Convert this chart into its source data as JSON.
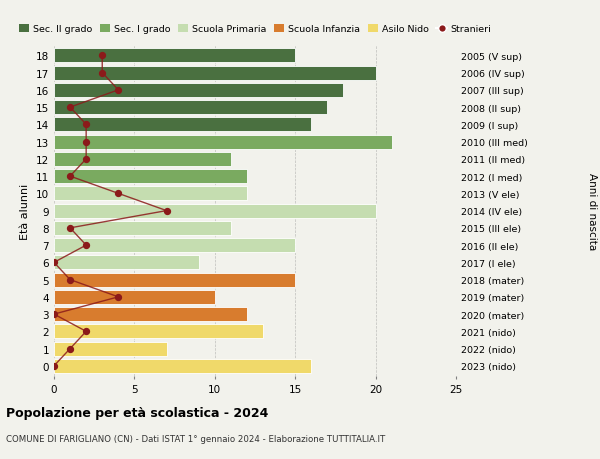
{
  "ages": [
    18,
    17,
    16,
    15,
    14,
    13,
    12,
    11,
    10,
    9,
    8,
    7,
    6,
    5,
    4,
    3,
    2,
    1,
    0
  ],
  "years": [
    "2005 (V sup)",
    "2006 (IV sup)",
    "2007 (III sup)",
    "2008 (II sup)",
    "2009 (I sup)",
    "2010 (III med)",
    "2011 (II med)",
    "2012 (I med)",
    "2013 (V ele)",
    "2014 (IV ele)",
    "2015 (III ele)",
    "2016 (II ele)",
    "2017 (I ele)",
    "2018 (mater)",
    "2019 (mater)",
    "2020 (mater)",
    "2021 (nido)",
    "2022 (nido)",
    "2023 (nido)"
  ],
  "bar_values": [
    15,
    20,
    18,
    17,
    16,
    21,
    11,
    12,
    12,
    20,
    11,
    15,
    9,
    15,
    10,
    12,
    13,
    7,
    16
  ],
  "stranieri": [
    3,
    3,
    4,
    1,
    2,
    2,
    2,
    1,
    4,
    7,
    1,
    2,
    0,
    1,
    4,
    0,
    2,
    1,
    0
  ],
  "category_colors": {
    "18": "#4a7040",
    "17": "#4a7040",
    "16": "#4a7040",
    "15": "#4a7040",
    "14": "#4a7040",
    "13": "#7aaa60",
    "12": "#7aaa60",
    "11": "#7aaa60",
    "10": "#c5ddb0",
    "9": "#c5ddb0",
    "8": "#c5ddb0",
    "7": "#c5ddb0",
    "6": "#c5ddb0",
    "5": "#d87c2e",
    "4": "#d87c2e",
    "3": "#d87c2e",
    "2": "#f0d96a",
    "1": "#f0d96a",
    "0": "#f0d96a"
  },
  "stranieri_color": "#8b1a1a",
  "title": "Popolazione per età scolastica - 2024",
  "subtitle": "COMUNE DI FARIGLIANO (CN) - Dati ISTAT 1° gennaio 2024 - Elaborazione TUTTITALIA.IT",
  "ylabel": "Età alunni",
  "right_label": "Anni di nascita",
  "xlim": [
    0,
    25
  ],
  "xticks": [
    0,
    5,
    10,
    15,
    20,
    25
  ],
  "legend_items": [
    {
      "label": "Sec. II grado",
      "color": "#4a7040",
      "type": "patch"
    },
    {
      "label": "Sec. I grado",
      "color": "#7aaa60",
      "type": "patch"
    },
    {
      "label": "Scuola Primaria",
      "color": "#c5ddb0",
      "type": "patch"
    },
    {
      "label": "Scuola Infanzia",
      "color": "#d87c2e",
      "type": "patch"
    },
    {
      "label": "Asilo Nido",
      "color": "#f0d96a",
      "type": "patch"
    },
    {
      "label": "Stranieri",
      "color": "#8b1a1a",
      "type": "dot"
    }
  ],
  "bg_color": "#f2f2ec",
  "bar_height": 0.82
}
